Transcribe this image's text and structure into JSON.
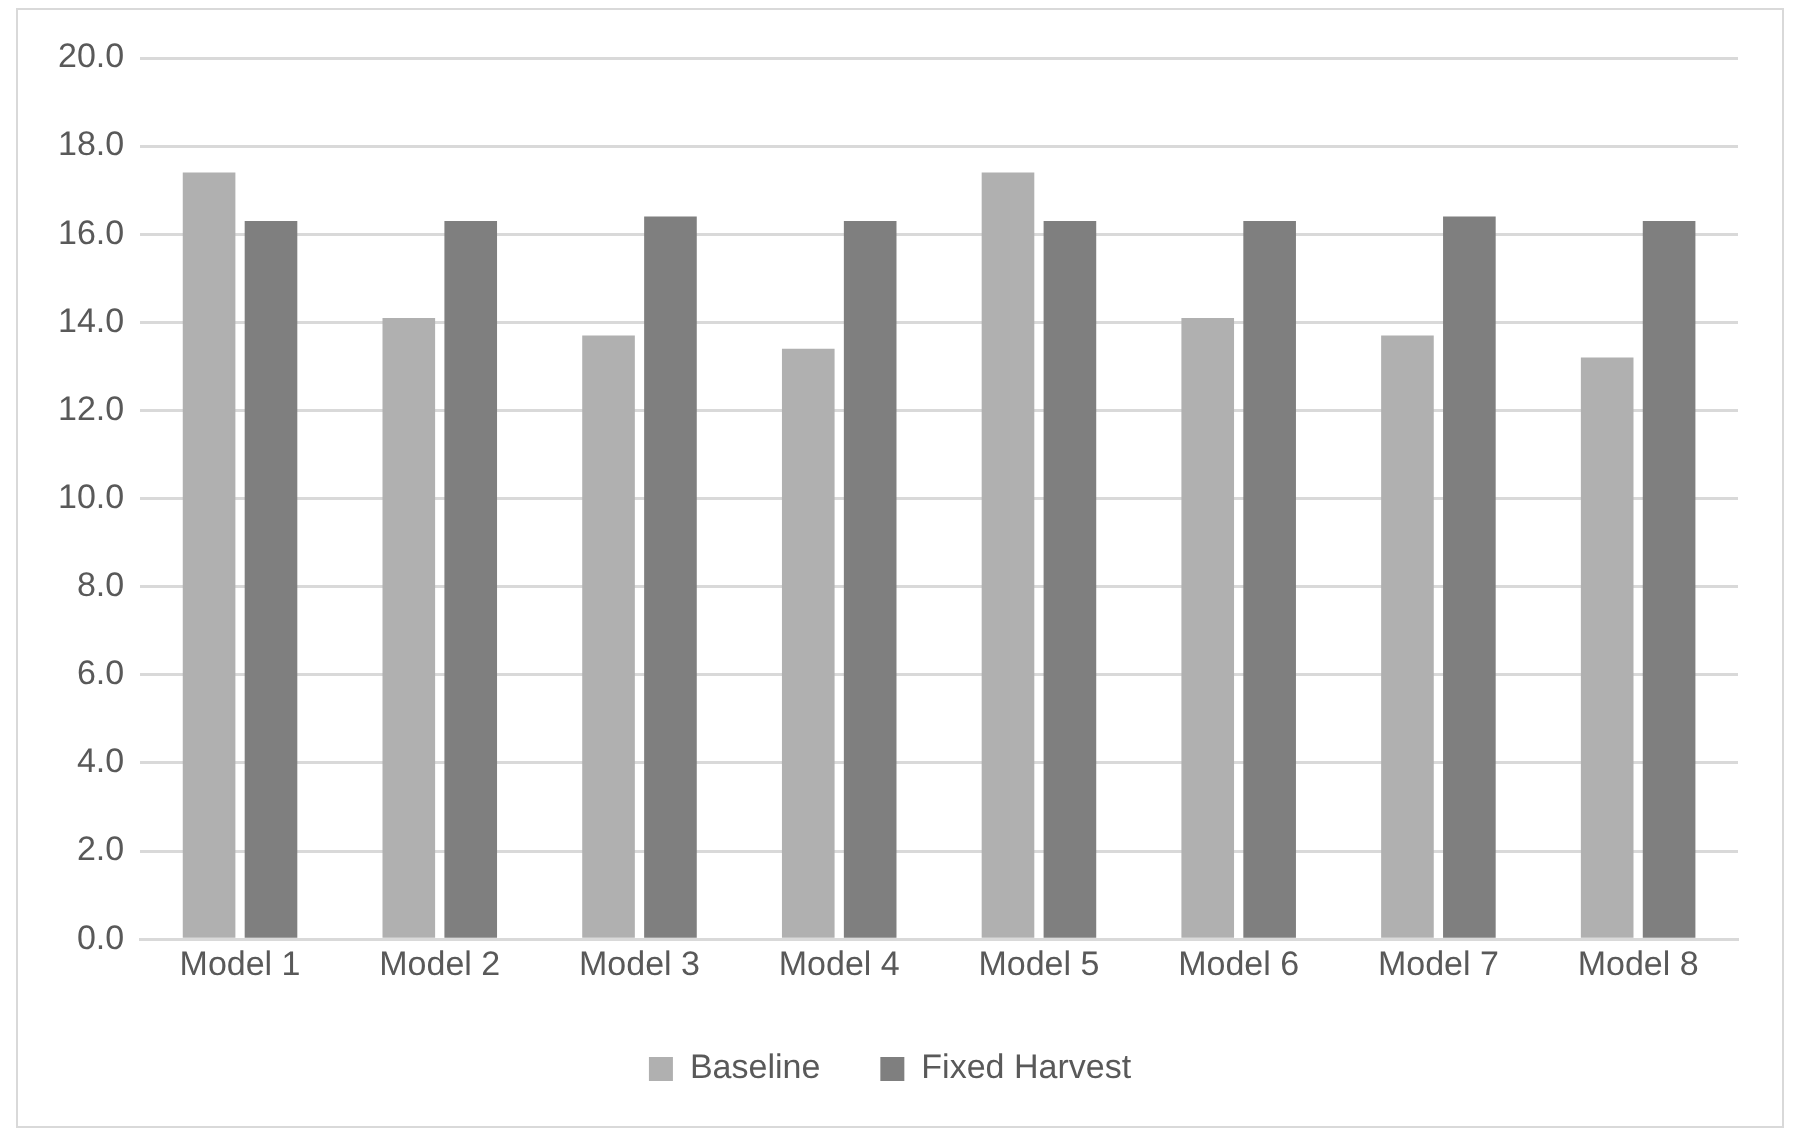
{
  "chart_data": {
    "type": "bar",
    "categories": [
      "Model 1",
      "Model 2",
      "Model 3",
      "Model 4",
      "Model 5",
      "Model 6",
      "Model 7",
      "Model 8"
    ],
    "series": [
      {
        "name": "Baseline",
        "color": "#b0b0b0",
        "values": [
          17.4,
          14.1,
          13.7,
          13.4,
          17.4,
          14.1,
          13.7,
          13.2
        ]
      },
      {
        "name": "Fixed Harvest",
        "color": "#7f7f7f",
        "values": [
          16.3,
          16.3,
          16.4,
          16.3,
          16.3,
          16.3,
          16.4,
          16.3
        ]
      }
    ],
    "ylim": [
      0,
      20
    ],
    "yticks": [
      {
        "value": 0,
        "label": "0.0"
      },
      {
        "value": 2,
        "label": "2.0"
      },
      {
        "value": 4,
        "label": "4.0"
      },
      {
        "value": 6,
        "label": "6.0"
      },
      {
        "value": 8,
        "label": "8.0"
      },
      {
        "value": 10,
        "label": "10.0"
      },
      {
        "value": 12,
        "label": "12.0"
      },
      {
        "value": 14,
        "label": "14.0"
      },
      {
        "value": 16,
        "label": "16.0"
      },
      {
        "value": 18,
        "label": "18.0"
      },
      {
        "value": 20,
        "label": "20.0"
      }
    ],
    "grid": "y",
    "legend": "bottom"
  }
}
